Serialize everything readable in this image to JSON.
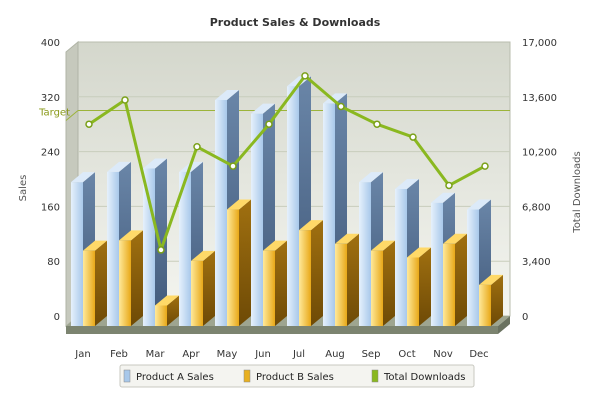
{
  "chart_data": {
    "type": "bar",
    "title": "Product Sales & Downloads",
    "categories": [
      "Jan",
      "Feb",
      "Mar",
      "Apr",
      "May",
      "Jun",
      "Jul",
      "Aug",
      "Sep",
      "Oct",
      "Nov",
      "Dec"
    ],
    "series": [
      {
        "name": "Product A Sales",
        "axis": "left",
        "kind": "bar3d",
        "color": "#a8c8ea",
        "values": [
          210,
          225,
          230,
          225,
          330,
          310,
          350,
          325,
          210,
          200,
          180,
          170
        ]
      },
      {
        "name": "Product B Sales",
        "axis": "left",
        "kind": "bar3d",
        "color": "#e8b020",
        "values": [
          110,
          125,
          30,
          95,
          170,
          110,
          140,
          120,
          110,
          100,
          120,
          60
        ]
      },
      {
        "name": "Total Downloads",
        "axis": "right",
        "kind": "line",
        "color": "#8ab820",
        "values": [
          11900,
          13400,
          4100,
          10500,
          9300,
          11900,
          14900,
          13000,
          11900,
          11100,
          8100,
          9300
        ]
      }
    ],
    "left_axis": {
      "label": "Sales",
      "min": 0,
      "max": 400,
      "ticks": [
        0,
        80,
        160,
        240,
        320,
        400
      ]
    },
    "right_axis": {
      "label": "Total Downloads",
      "min": 0,
      "max": 17000,
      "ticks": [
        "0",
        "3,400",
        "6,800",
        "10,200",
        "13,600",
        "17,000"
      ]
    },
    "trendline": {
      "label": "Target",
      "value": 300
    },
    "legend_position": "bottom-center",
    "grid": true
  }
}
